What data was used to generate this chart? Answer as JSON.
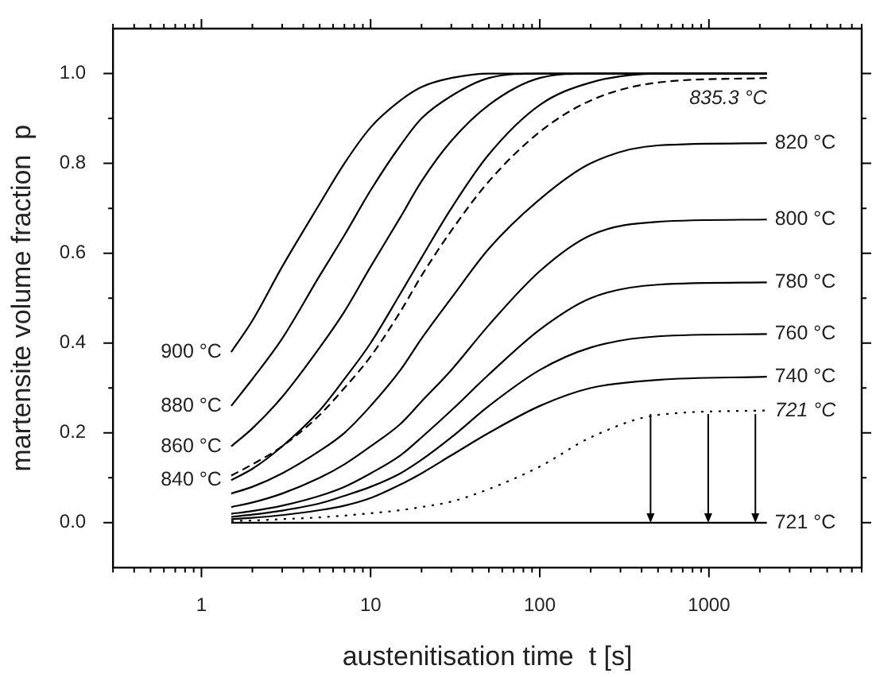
{
  "chart_data": {
    "type": "line",
    "xlabel": "austenitisation time  t [s]",
    "ylabel": "martensite volume fraction  p",
    "log": "x",
    "marker": "none",
    "grid": false,
    "legend": "right",
    "x": [
      1.5,
      2,
      3,
      5,
      7,
      10,
      15,
      20,
      30,
      50,
      100,
      200,
      500,
      2200
    ],
    "xlim": [
      0.3,
      8000
    ],
    "xticks": [
      {
        "value": 0.3,
        "label": null
      },
      {
        "value": 0.4,
        "label": null
      },
      {
        "value": 0.5,
        "label": null
      },
      {
        "value": 0.6,
        "label": null
      },
      {
        "value": 0.7,
        "label": null
      },
      {
        "value": 0.8,
        "label": null
      },
      {
        "value": 0.9,
        "label": null
      },
      1,
      {
        "value": 2,
        "label": null
      },
      {
        "value": 3,
        "label": null
      },
      {
        "value": 4,
        "label": null
      },
      {
        "value": 5,
        "label": null
      },
      {
        "value": 6,
        "label": null
      },
      {
        "value": 7,
        "label": null
      },
      {
        "value": 8,
        "label": null
      },
      {
        "value": 9,
        "label": null
      },
      10,
      {
        "value": 20,
        "label": null
      },
      {
        "value": 30,
        "label": null
      },
      {
        "value": 40,
        "label": null
      },
      {
        "value": 50,
        "label": null
      },
      {
        "value": 60,
        "label": null
      },
      {
        "value": 70,
        "label": null
      },
      {
        "value": 80,
        "label": null
      },
      {
        "value": 90,
        "label": null
      },
      100,
      {
        "value": 200,
        "label": null
      },
      {
        "value": 300,
        "label": null
      },
      {
        "value": 400,
        "label": null
      },
      {
        "value": 500,
        "label": null
      },
      {
        "value": 600,
        "label": null
      },
      {
        "value": 700,
        "label": null
      },
      {
        "value": 800,
        "label": null
      },
      {
        "value": 900,
        "label": null
      },
      1000,
      {
        "value": 2000,
        "label": null
      },
      {
        "value": 3000,
        "label": null
      },
      {
        "value": 4000,
        "label": null
      },
      {
        "value": 5000,
        "label": null
      },
      {
        "value": 6000,
        "label": null
      },
      {
        "value": 7000,
        "label": null
      },
      {
        "value": 8000,
        "label": null
      }
    ],
    "ylim": [
      -0.1,
      1.1
    ],
    "yticks": [
      {
        "value": 0,
        "label": "0.0"
      },
      {
        "value": 0.1,
        "label": null
      },
      {
        "value": 0.2,
        "label": "0.2"
      },
      {
        "value": 0.3,
        "label": null
      },
      {
        "value": 0.4,
        "label": "0.4"
      },
      {
        "value": 0.5,
        "label": null
      },
      {
        "value": 0.6,
        "label": "0.6"
      },
      {
        "value": 0.7,
        "label": null
      },
      {
        "value": 0.8,
        "label": "0.8"
      },
      {
        "value": 0.9,
        "label": null
      },
      {
        "value": 1,
        "label": "1.0"
      }
    ],
    "series": [
      {
        "name": "900 °C",
        "color": "#000000",
        "values": [
          0.38,
          0.45,
          0.57,
          0.71,
          0.8,
          0.88,
          0.94,
          0.97,
          0.99,
          1,
          1,
          1,
          1,
          1
        ]
      },
      {
        "name": "880 °C",
        "color": "#000000",
        "values": [
          0.26,
          0.32,
          0.41,
          0.55,
          0.64,
          0.74,
          0.84,
          0.9,
          0.95,
          0.99,
          1,
          1,
          1,
          1
        ]
      },
      {
        "name": "860 °C",
        "color": "#000000",
        "values": [
          0.17,
          0.21,
          0.28,
          0.39,
          0.47,
          0.57,
          0.68,
          0.76,
          0.85,
          0.93,
          0.99,
          1,
          1,
          1
        ]
      },
      {
        "name": "840 °C",
        "color": "#000000",
        "values": [
          0.095,
          0.12,
          0.17,
          0.25,
          0.32,
          0.4,
          0.51,
          0.59,
          0.7,
          0.82,
          0.93,
          0.98,
          1,
          1
        ]
      },
      {
        "name": "835.3 °C",
        "color": "#000000",
        "line_style": "dashed",
        "values": [
          0.105,
          0.13,
          0.17,
          0.24,
          0.3,
          0.37,
          0.47,
          0.55,
          0.65,
          0.76,
          0.87,
          0.94,
          0.98,
          0.99
        ]
      },
      {
        "name": "820 °C",
        "color": "#000000",
        "values": [
          0.065,
          0.08,
          0.11,
          0.16,
          0.2,
          0.26,
          0.34,
          0.41,
          0.5,
          0.61,
          0.72,
          0.8,
          0.84,
          0.845
        ]
      },
      {
        "name": "800 °C",
        "color": "#000000",
        "values": [
          0.035,
          0.045,
          0.065,
          0.1,
          0.13,
          0.17,
          0.22,
          0.27,
          0.34,
          0.44,
          0.56,
          0.64,
          0.67,
          0.675
        ]
      },
      {
        "name": "780 °C",
        "color": "#000000",
        "values": [
          0.02,
          0.026,
          0.038,
          0.06,
          0.08,
          0.11,
          0.15,
          0.19,
          0.25,
          0.33,
          0.43,
          0.5,
          0.53,
          0.535
        ]
      },
      {
        "name": "760 °C",
        "color": "#000000",
        "values": [
          0.013,
          0.018,
          0.027,
          0.043,
          0.06,
          0.08,
          0.11,
          0.14,
          0.19,
          0.26,
          0.34,
          0.39,
          0.415,
          0.42
        ]
      },
      {
        "name": "740 °C",
        "color": "#000000",
        "values": [
          0.008,
          0.011,
          0.017,
          0.028,
          0.038,
          0.055,
          0.085,
          0.11,
          0.15,
          0.2,
          0.26,
          0.3,
          0.318,
          0.325
        ]
      },
      {
        "name": "721 °C",
        "color": "#000000",
        "line_style": "dotted",
        "values": [
          0.004,
          0.005,
          0.008,
          0.012,
          0.016,
          0.021,
          0.028,
          0.035,
          0.047,
          0.075,
          0.125,
          0.19,
          0.24,
          0.25
        ]
      },
      {
        "name": "721 °C",
        "color": "#000000",
        "values": [
          0,
          0,
          0,
          0,
          0,
          0,
          0,
          0,
          0,
          0,
          0,
          0,
          0,
          0
        ]
      }
    ]
  }
}
